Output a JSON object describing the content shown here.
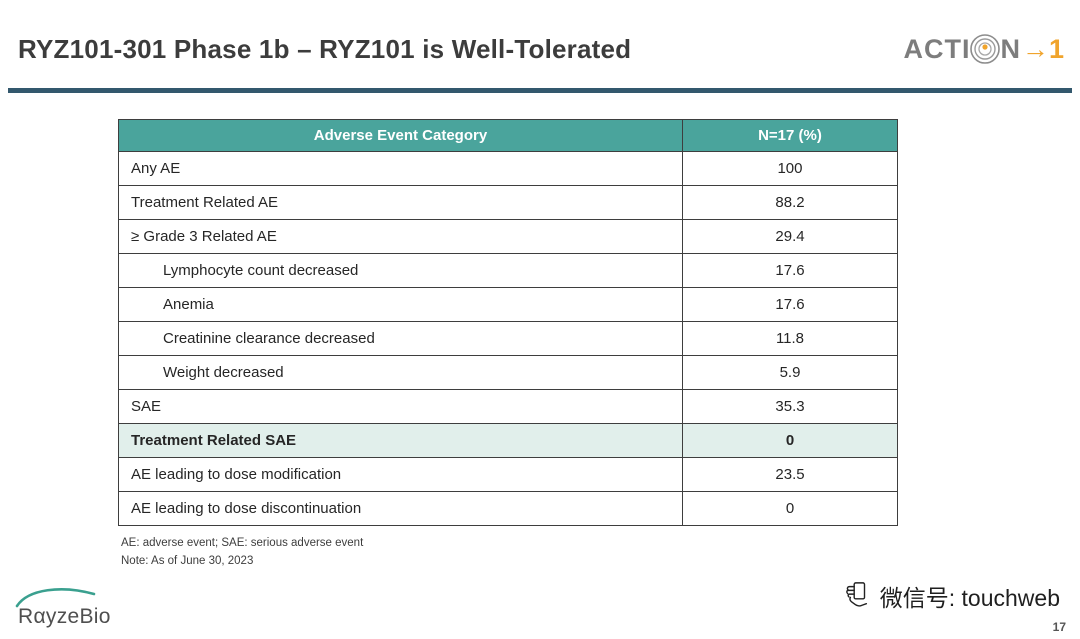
{
  "slide": {
    "title": "RYZ101-301 Phase 1b – RYZ101 is Well-Tolerated",
    "page_number": "17"
  },
  "logos": {
    "action_prefix": "ACTI",
    "action_n": "N",
    "action_arrow_one": "→1",
    "rayzebio": "RαyzeBio"
  },
  "footer": {
    "wechat": "微信号: touchweb"
  },
  "table": {
    "headers": [
      "Adverse Event Category",
      "N=17 (%)"
    ],
    "rows": [
      {
        "label": "Any AE",
        "value": "100",
        "indent": false,
        "bold": false,
        "highlight": false
      },
      {
        "label": "Treatment Related AE",
        "value": "88.2",
        "indent": false,
        "bold": false,
        "highlight": false
      },
      {
        "label": "≥ Grade 3 Related AE",
        "value": "29.4",
        "indent": false,
        "bold": false,
        "highlight": false
      },
      {
        "label": "Lymphocyte count decreased",
        "value": "17.6",
        "indent": true,
        "bold": false,
        "highlight": false
      },
      {
        "label": "Anemia",
        "value": "17.6",
        "indent": true,
        "bold": false,
        "highlight": false
      },
      {
        "label": "Creatinine clearance decreased",
        "value": "11.8",
        "indent": true,
        "bold": false,
        "highlight": false
      },
      {
        "label": "Weight decreased",
        "value": "5.9",
        "indent": true,
        "bold": false,
        "highlight": false
      },
      {
        "label": "SAE",
        "value": "35.3",
        "indent": false,
        "bold": false,
        "highlight": false
      },
      {
        "label": "Treatment Related SAE",
        "value": "0",
        "indent": false,
        "bold": true,
        "highlight": true
      },
      {
        "label": "AE leading to dose modification",
        "value": "23.5",
        "indent": false,
        "bold": false,
        "highlight": false
      },
      {
        "label": "AE leading to dose discontinuation",
        "value": "0",
        "indent": false,
        "bold": false,
        "highlight": false
      }
    ],
    "footnotes": [
      "AE: adverse event; SAE: serious adverse event",
      "Note: As of June 30, 2023"
    ]
  },
  "colors": {
    "header_bg": "#4AA49C",
    "highlight_bg": "#E1EFEB",
    "accent_bar": "#33586D",
    "action_orange": "#F0A42C",
    "rayzebio_teal": "#3AA08F"
  }
}
